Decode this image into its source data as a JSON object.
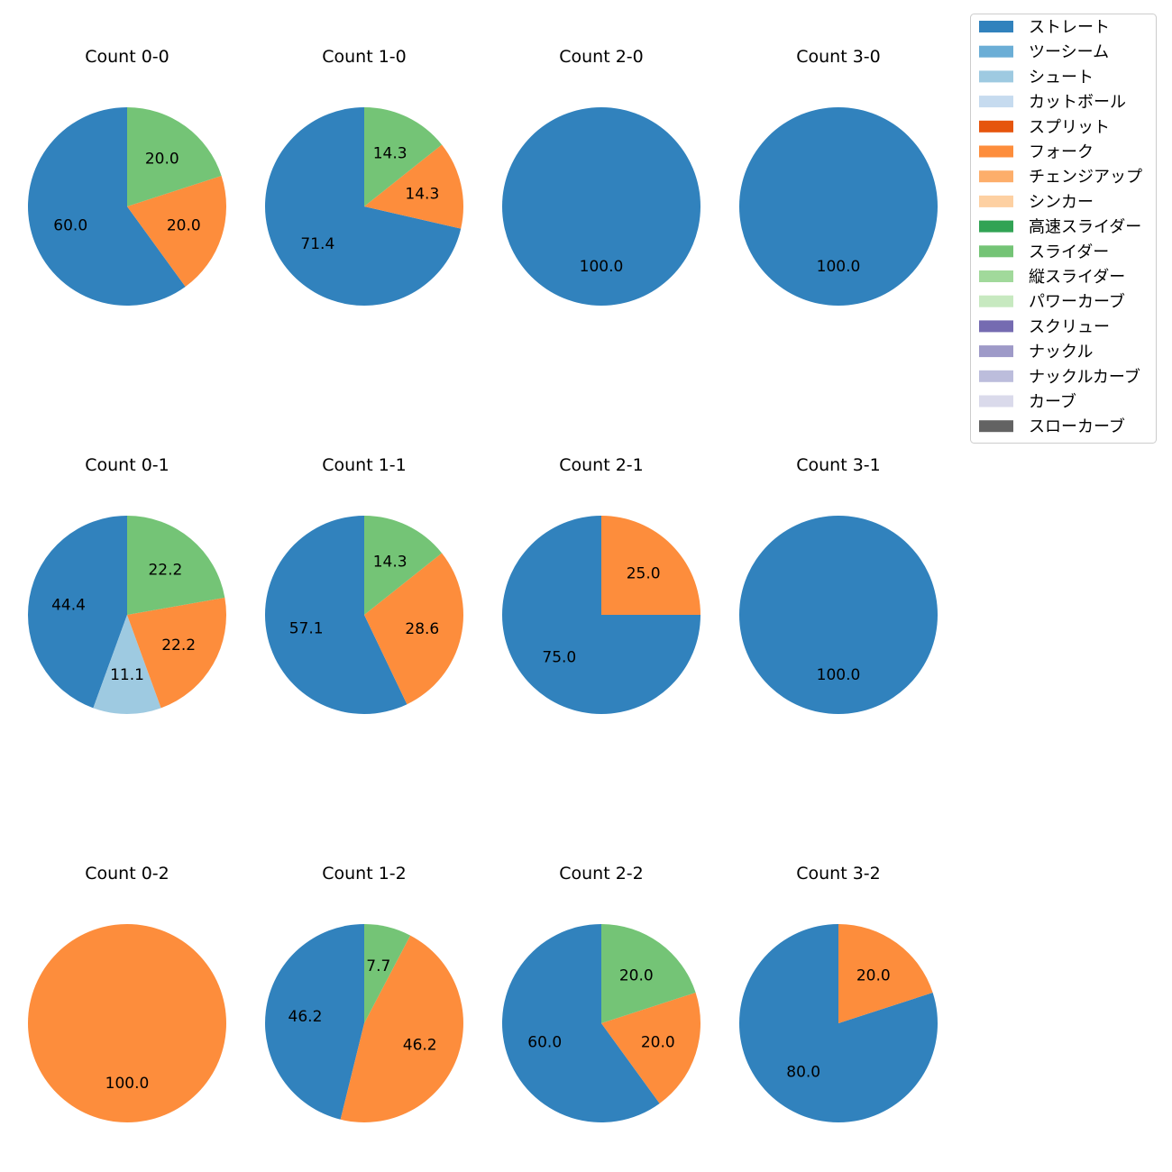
{
  "chart_data": {
    "type": "pie",
    "title": "",
    "autopct_format": "%.1f",
    "legend": {
      "placement": "top-right",
      "entries": [
        {
          "label": "ストレート",
          "color": "#3182bd"
        },
        {
          "label": "ツーシーム",
          "color": "#6baed6"
        },
        {
          "label": "シュート",
          "color": "#9ecae1"
        },
        {
          "label": "カットボール",
          "color": "#c6dbef"
        },
        {
          "label": "スプリット",
          "color": "#e6550d"
        },
        {
          "label": "フォーク",
          "color": "#fd8d3c"
        },
        {
          "label": "チェンジアップ",
          "color": "#fdae6b"
        },
        {
          "label": "シンカー",
          "color": "#fdd0a2"
        },
        {
          "label": "高速スライダー",
          "color": "#31a354"
        },
        {
          "label": "スライダー",
          "color": "#74c476"
        },
        {
          "label": "縦スライダー",
          "color": "#a1d99b"
        },
        {
          "label": "パワーカーブ",
          "color": "#c7e9c0"
        },
        {
          "label": "スクリュー",
          "color": "#756bb1"
        },
        {
          "label": "ナックル",
          "color": "#9e9ac8"
        },
        {
          "label": "ナックルカーブ",
          "color": "#bcbddc"
        },
        {
          "label": "カーブ",
          "color": "#dadaeb"
        },
        {
          "label": "スローカーブ",
          "color": "#636363"
        }
      ]
    },
    "panels": [
      {
        "title": "Count 0-0",
        "slices": [
          {
            "pitch": "ストレート",
            "value": 60.0
          },
          {
            "pitch": "フォーク",
            "value": 20.0
          },
          {
            "pitch": "スライダー",
            "value": 20.0
          }
        ]
      },
      {
        "title": "Count 1-0",
        "slices": [
          {
            "pitch": "ストレート",
            "value": 71.4
          },
          {
            "pitch": "フォーク",
            "value": 14.3
          },
          {
            "pitch": "スライダー",
            "value": 14.3
          }
        ]
      },
      {
        "title": "Count 2-0",
        "slices": [
          {
            "pitch": "ストレート",
            "value": 100.0
          }
        ]
      },
      {
        "title": "Count 3-0",
        "slices": [
          {
            "pitch": "ストレート",
            "value": 100.0
          }
        ]
      },
      {
        "title": "Count 0-1",
        "slices": [
          {
            "pitch": "ストレート",
            "value": 44.4
          },
          {
            "pitch": "シュート",
            "value": 11.1
          },
          {
            "pitch": "フォーク",
            "value": 22.2
          },
          {
            "pitch": "スライダー",
            "value": 22.2
          }
        ]
      },
      {
        "title": "Count 1-1",
        "slices": [
          {
            "pitch": "ストレート",
            "value": 57.1
          },
          {
            "pitch": "フォーク",
            "value": 28.6
          },
          {
            "pitch": "スライダー",
            "value": 14.3
          }
        ]
      },
      {
        "title": "Count 2-1",
        "slices": [
          {
            "pitch": "ストレート",
            "value": 75.0
          },
          {
            "pitch": "フォーク",
            "value": 25.0
          }
        ]
      },
      {
        "title": "Count 3-1",
        "slices": [
          {
            "pitch": "ストレート",
            "value": 100.0
          }
        ]
      },
      {
        "title": "Count 0-2",
        "slices": [
          {
            "pitch": "フォーク",
            "value": 100.0
          }
        ]
      },
      {
        "title": "Count 1-2",
        "slices": [
          {
            "pitch": "ストレート",
            "value": 46.2
          },
          {
            "pitch": "フォーク",
            "value": 46.2
          },
          {
            "pitch": "スライダー",
            "value": 7.7
          }
        ]
      },
      {
        "title": "Count 2-2",
        "slices": [
          {
            "pitch": "ストレート",
            "value": 60.0
          },
          {
            "pitch": "フォーク",
            "value": 20.0
          },
          {
            "pitch": "スライダー",
            "value": 20.0
          }
        ]
      },
      {
        "title": "Count 3-2",
        "slices": [
          {
            "pitch": "ストレート",
            "value": 80.0
          },
          {
            "pitch": "フォーク",
            "value": 20.0
          }
        ]
      }
    ]
  }
}
